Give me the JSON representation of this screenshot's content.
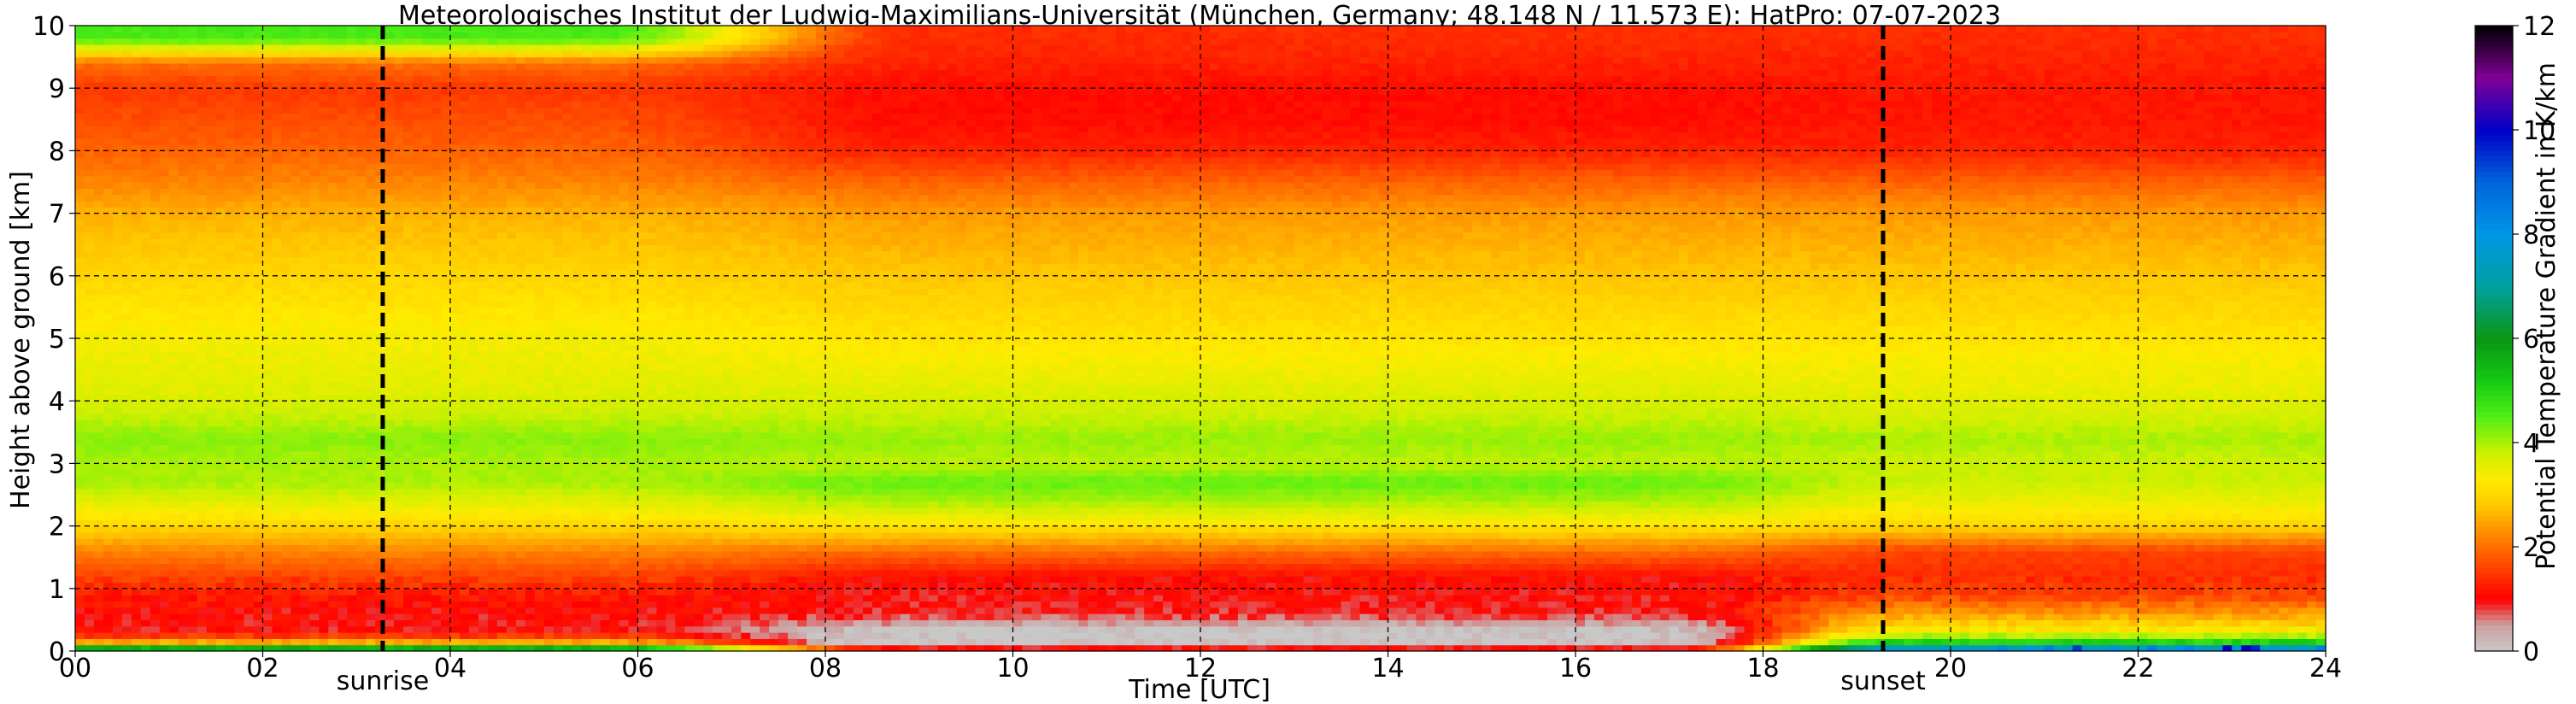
{
  "chart_data": {
    "type": "heatmap",
    "title": "Meteorologisches Institut der Ludwig-Maximilians-Universität (München, Germany; 48.148 N / 11.573 E):    HatPro: 07-07-2023",
    "xlabel": "Time [UTC]",
    "ylabel": "Height above ground [km]",
    "colorbar_label": "Potential Temperature Gradient in K/km",
    "xlim": [
      0,
      24
    ],
    "ylim": [
      0,
      10
    ],
    "clim": [
      0,
      12
    ],
    "grid": true,
    "x_ticks": [
      "00",
      "02",
      "04",
      "06",
      "08",
      "10",
      "12",
      "14",
      "16",
      "18",
      "20",
      "22",
      "24"
    ],
    "y_ticks": [
      "0",
      "1",
      "2",
      "3",
      "4",
      "5",
      "6",
      "7",
      "8",
      "9",
      "10"
    ],
    "colorbar_ticks": [
      "0",
      "2",
      "4",
      "6",
      "8",
      "10",
      "12"
    ],
    "colorbar_colors": [
      "#c8c8c8",
      "#ff0000",
      "#ff6e00",
      "#ffd700",
      "#c8f000",
      "#32e632",
      "#0a9614",
      "#00a0a0",
      "#0096e6",
      "#0000c8",
      "#800096",
      "#000000"
    ],
    "annotations": [
      {
        "text": "sunrise",
        "x": 3.28
      },
      {
        "text": "sunset",
        "x": 19.28
      }
    ],
    "profiles_k_per_km": {
      "heights_km": [
        0.05,
        0.15,
        0.3,
        0.6,
        0.9,
        1.2,
        1.6,
        2.0,
        2.4,
        2.7,
        3.0,
        3.4,
        3.8,
        4.2,
        4.6,
        5.0,
        5.5,
        6.0,
        6.5,
        7.0,
        7.5,
        8.0,
        8.5,
        9.0,
        9.4,
        9.8
      ],
      "night": [
        5.5,
        2.5,
        1.0,
        1.0,
        1.2,
        1.6,
        2.2,
        3.0,
        3.6,
        4.0,
        4.0,
        4.2,
        3.8,
        3.6,
        3.5,
        3.4,
        3.2,
        3.0,
        2.8,
        2.6,
        2.2,
        1.9,
        1.7,
        1.5,
        2.0,
        4.6
      ],
      "day": [
        1.0,
        0.2,
        0.0,
        0.9,
        1.0,
        1.1,
        2.0,
        3.2,
        4.0,
        4.4,
        3.9,
        4.1,
        3.8,
        3.6,
        3.4,
        3.2,
        3.0,
        2.8,
        2.6,
        2.4,
        1.9,
        1.3,
        1.1,
        1.1,
        1.3,
        1.4
      ],
      "evening": [
        7.5,
        5.0,
        3.4,
        2.4,
        1.6,
        1.4,
        1.6,
        3.0,
        3.5,
        3.8,
        3.8,
        4.0,
        3.7,
        3.5,
        3.4,
        3.2,
        3.0,
        2.8,
        2.6,
        2.4,
        1.9,
        1.3,
        1.2,
        1.2,
        1.3,
        1.4
      ]
    }
  }
}
